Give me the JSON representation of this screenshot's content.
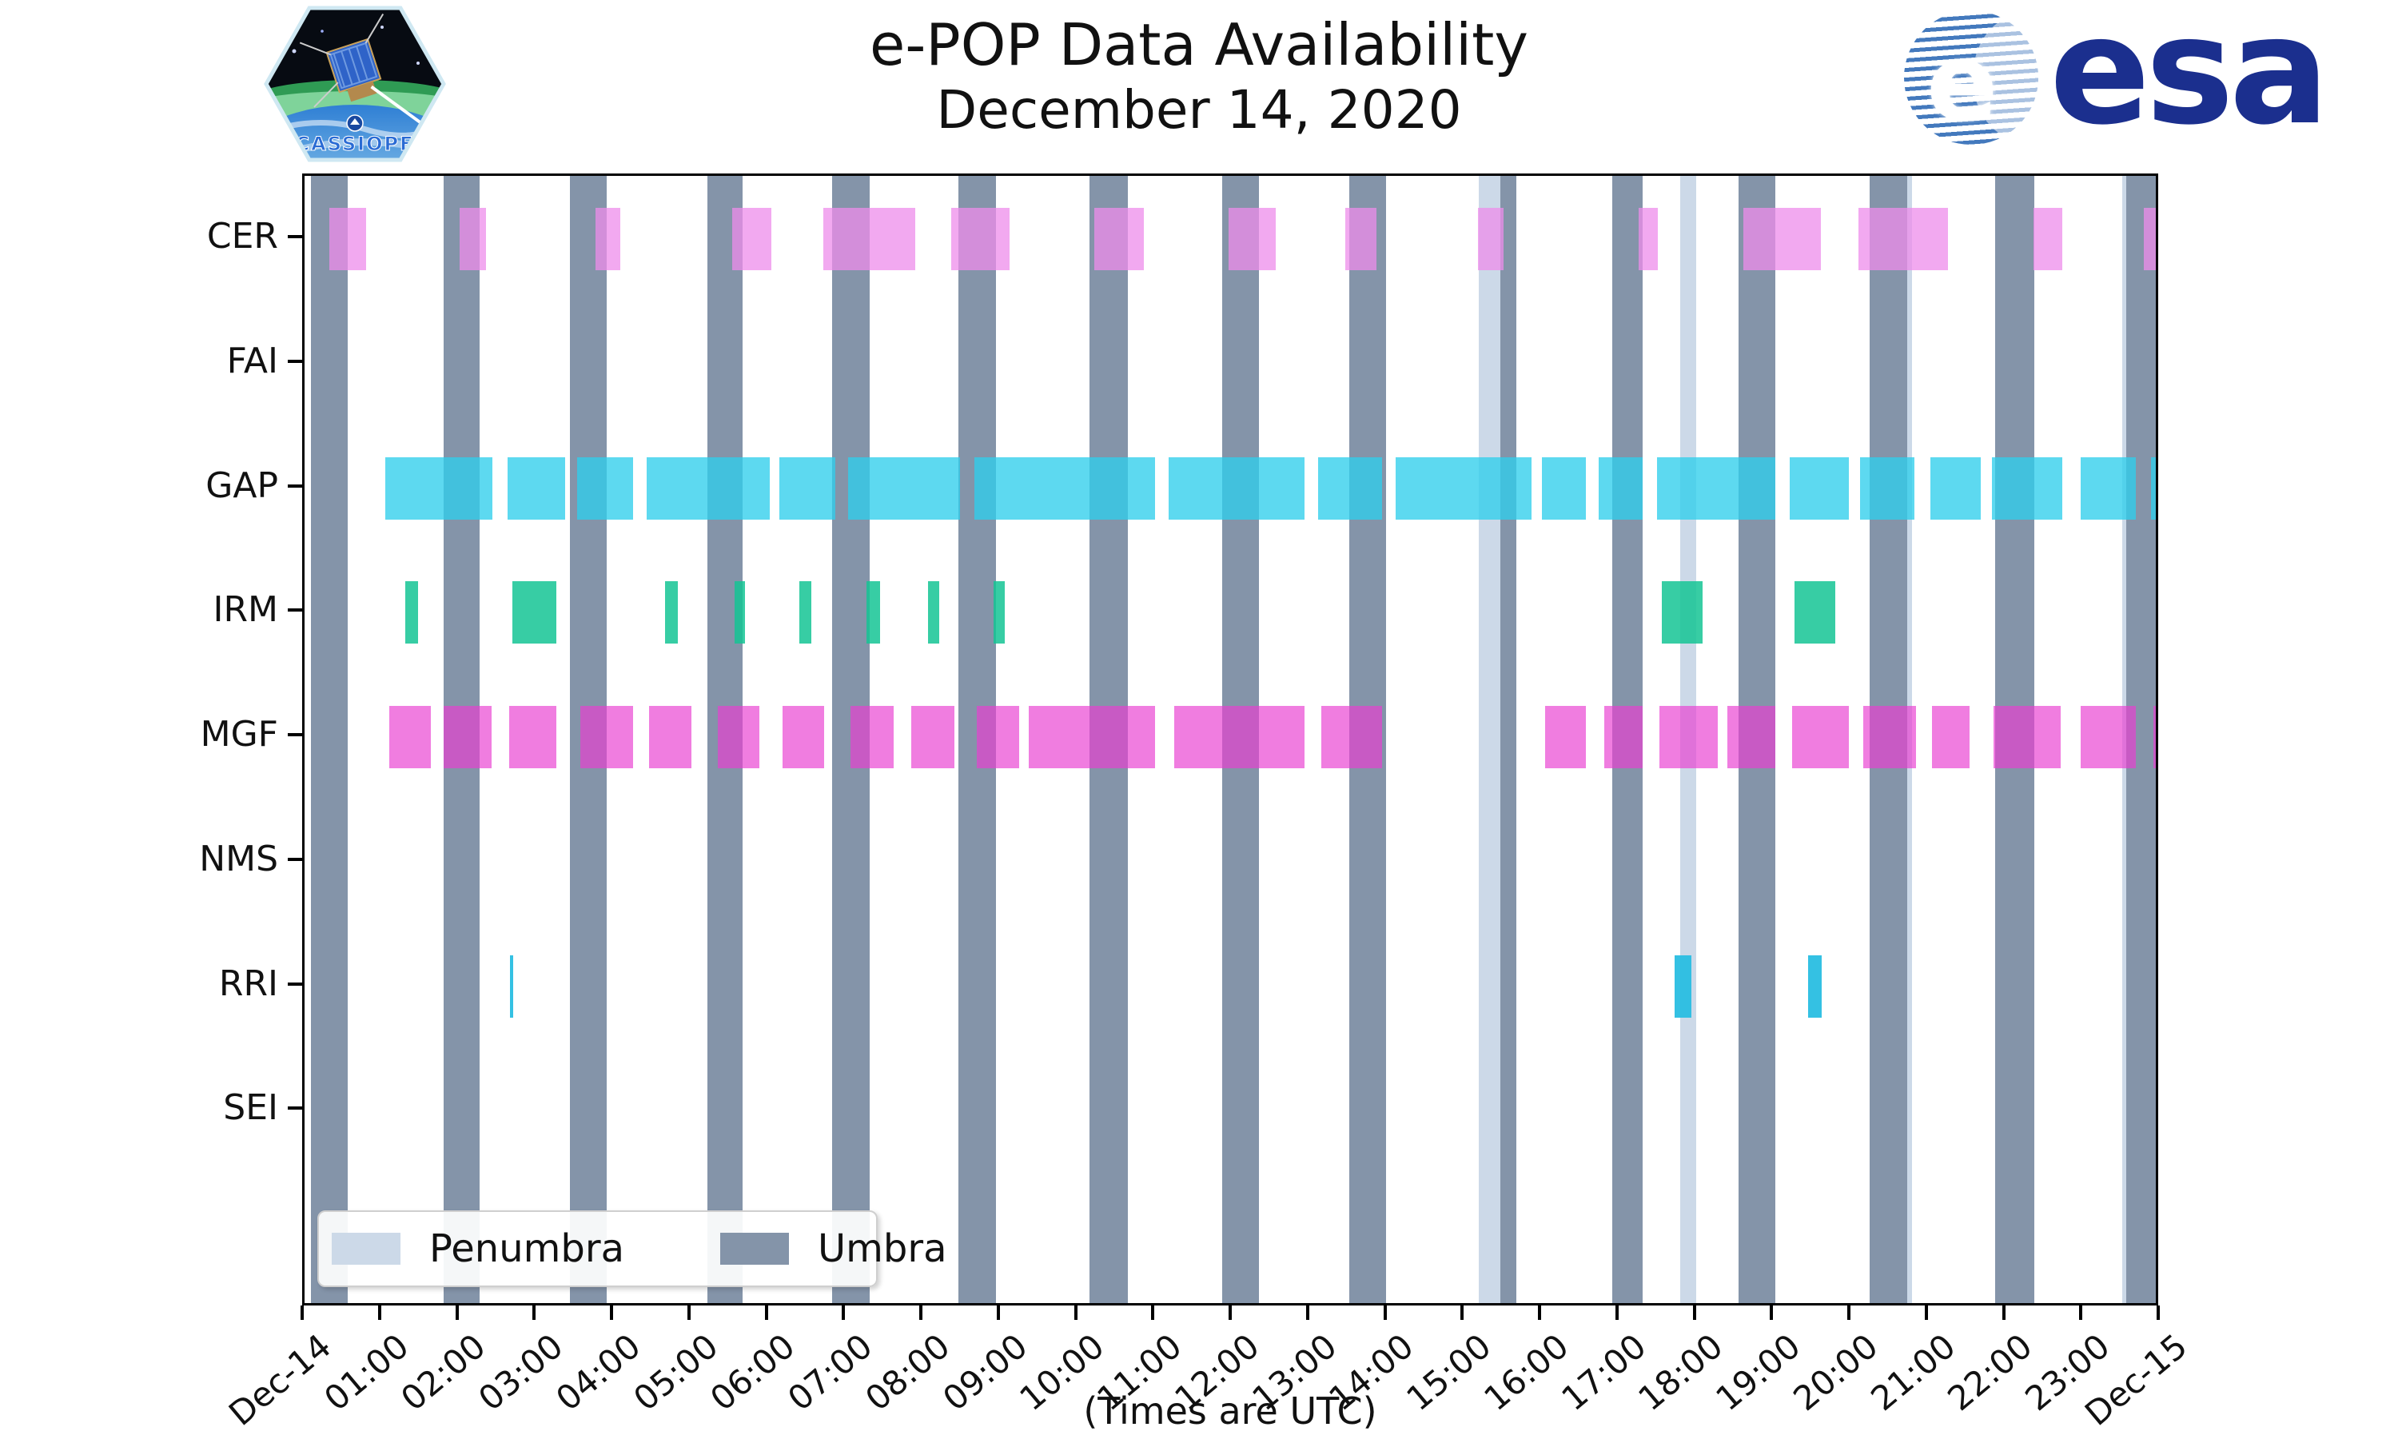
{
  "header": {
    "title_line1": "e-POP Data Availability",
    "title_line2": "December 14, 2020",
    "cassiope_label": "CASSIOPE",
    "esa_label": "esa"
  },
  "legend": {
    "penumbra_label": "Penumbra",
    "umbra_label": "Umbra"
  },
  "xlabel": "(Times are UTC)",
  "chart_data": {
    "type": "timeline-availability-barh",
    "title": "e-POP Data Availability December 14, 2020",
    "x_range_hours": [
      0,
      24
    ],
    "x_tick_labels": [
      "Dec-14",
      "01:00",
      "02:00",
      "03:00",
      "04:00",
      "05:00",
      "06:00",
      "07:00",
      "08:00",
      "09:00",
      "10:00",
      "11:00",
      "12:00",
      "13:00",
      "14:00",
      "15:00",
      "16:00",
      "17:00",
      "18:00",
      "19:00",
      "20:00",
      "21:00",
      "22:00",
      "23:00",
      "Dec-15"
    ],
    "grid": false,
    "legend_position": "lower-left",
    "colors": {
      "umbra": "#8494a9",
      "penumbra": "#ccd9e8",
      "CER": "rgba(238,140,235,0.75)",
      "GAP": "rgba(48,206,236,0.78)",
      "IRM": "rgba(20,196,148,0.85)",
      "MGF": "rgba(233,64,210,0.68)",
      "RRI": "rgba(41,190,226,0.95)"
    },
    "instruments": [
      {
        "name": "CER",
        "color": "rgba(238,140,235,0.75)"
      },
      {
        "name": "FAI",
        "color": "rgba(255,170,80,0.8)"
      },
      {
        "name": "GAP",
        "color": "rgba(48,206,236,0.78)"
      },
      {
        "name": "IRM",
        "color": "rgba(20,196,148,0.85)"
      },
      {
        "name": "MGF",
        "color": "rgba(233,64,210,0.68)"
      },
      {
        "name": "NMS",
        "color": "rgba(150,150,150,0.8)"
      },
      {
        "name": "RRI",
        "color": "rgba(41,190,226,0.95)"
      },
      {
        "name": "SEI",
        "color": "rgba(150,150,150,0.8)"
      }
    ],
    "umbra_hours": [
      [
        0.08,
        0.56
      ],
      [
        1.8,
        2.27
      ],
      [
        3.44,
        3.92
      ],
      [
        5.22,
        5.68
      ],
      [
        6.84,
        7.33
      ],
      [
        8.48,
        8.96
      ],
      [
        10.18,
        10.67
      ],
      [
        11.9,
        12.37
      ],
      [
        13.54,
        14.02
      ],
      [
        15.5,
        15.71
      ],
      [
        16.95,
        17.35
      ],
      [
        18.59,
        19.07
      ],
      [
        20.29,
        20.78
      ],
      [
        21.92,
        22.42
      ],
      [
        23.62,
        24.0
      ]
    ],
    "penumbra_hours": [
      [
        15.22,
        15.5
      ],
      [
        17.83,
        18.04
      ],
      [
        20.78,
        20.84
      ],
      [
        23.56,
        23.62
      ]
    ],
    "availability_hours": {
      "CER": [
        [
          0.32,
          0.8
        ],
        [
          2.01,
          2.35
        ],
        [
          3.77,
          4.09
        ],
        [
          5.54,
          6.05
        ],
        [
          6.73,
          7.92
        ],
        [
          8.38,
          9.14
        ],
        [
          10.24,
          10.88
        ],
        [
          11.98,
          12.59
        ],
        [
          13.49,
          13.9
        ],
        [
          15.21,
          15.54
        ],
        [
          17.3,
          17.54
        ],
        [
          18.65,
          19.66
        ],
        [
          20.14,
          21.31
        ],
        [
          22.41,
          22.79
        ],
        [
          23.84,
          24.0
        ]
      ],
      "FAI": [],
      "GAP": [
        [
          1.05,
          2.44
        ],
        [
          2.63,
          3.38
        ],
        [
          3.53,
          4.26
        ],
        [
          4.44,
          6.03
        ],
        [
          6.16,
          6.88
        ],
        [
          7.05,
          8.5
        ],
        [
          8.68,
          11.03
        ],
        [
          11.2,
          12.96
        ],
        [
          13.14,
          13.97
        ],
        [
          14.15,
          15.91
        ],
        [
          16.04,
          16.61
        ],
        [
          16.78,
          17.35
        ],
        [
          17.53,
          19.07
        ],
        [
          19.25,
          20.02
        ],
        [
          20.17,
          20.87
        ],
        [
          21.08,
          21.73
        ],
        [
          21.88,
          22.79
        ],
        [
          23.03,
          23.74
        ],
        [
          23.94,
          24.0
        ]
      ],
      "IRM": [
        [
          1.31,
          1.47
        ],
        [
          2.69,
          3.26
        ],
        [
          4.67,
          4.84
        ],
        [
          5.57,
          5.71
        ],
        [
          6.41,
          6.57
        ],
        [
          7.29,
          7.46
        ],
        [
          8.08,
          8.23
        ],
        [
          8.93,
          9.08
        ],
        [
          17.6,
          18.12
        ],
        [
          19.32,
          19.84
        ]
      ],
      "MGF": [
        [
          1.1,
          1.64
        ],
        [
          1.8,
          2.43
        ],
        [
          2.65,
          3.26
        ],
        [
          3.58,
          4.26
        ],
        [
          4.47,
          5.02
        ],
        [
          5.36,
          5.9
        ],
        [
          6.2,
          6.74
        ],
        [
          7.08,
          7.64
        ],
        [
          7.87,
          8.42
        ],
        [
          8.71,
          9.26
        ],
        [
          9.39,
          11.03
        ],
        [
          11.27,
          12.96
        ],
        [
          13.18,
          13.97
        ],
        [
          16.08,
          16.61
        ],
        [
          16.85,
          17.35
        ],
        [
          17.56,
          18.32
        ],
        [
          18.45,
          19.07
        ],
        [
          19.29,
          20.02
        ],
        [
          20.21,
          20.89
        ],
        [
          21.1,
          21.59
        ],
        [
          21.9,
          22.77
        ],
        [
          23.03,
          23.74
        ],
        [
          23.97,
          24.0
        ]
      ],
      "NMS": [],
      "RRI": [
        [
          2.66,
          2.7
        ],
        [
          17.76,
          17.98
        ],
        [
          19.49,
          19.67
        ]
      ],
      "SEI": []
    }
  }
}
